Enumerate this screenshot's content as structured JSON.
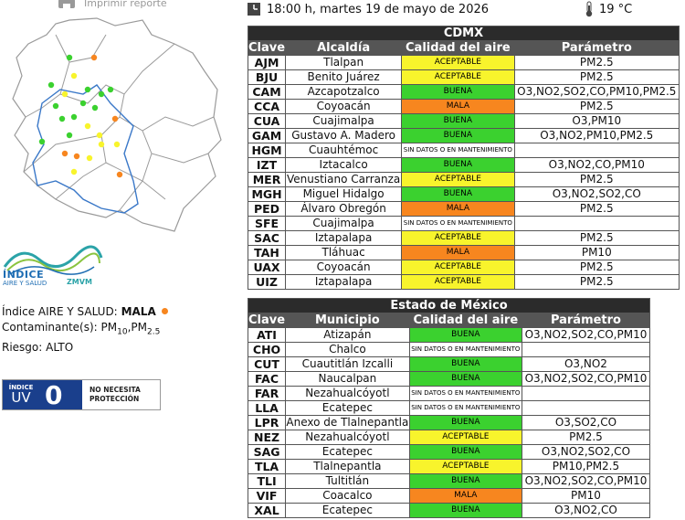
{
  "header": {
    "print_label": "Imprimir reporte",
    "datetime": "18:00 h, martes 19 de mayo de 2026",
    "temperature": "19 °C"
  },
  "cdmx": {
    "title": "CDMX",
    "columns": [
      "Clave",
      "Alcaldía",
      "Calidad del aire",
      "Parámetro"
    ],
    "rows": [
      {
        "key": "AJM",
        "name": "Tlalpan",
        "quality": "ACEPTABLE",
        "param": "PM2.5"
      },
      {
        "key": "BJU",
        "name": "Benito Juárez",
        "quality": "ACEPTABLE",
        "param": "PM2.5"
      },
      {
        "key": "CAM",
        "name": "Azcapotzalco",
        "quality": "BUENA",
        "param": "O3,NO2,SO2,CO,PM10,PM2.5"
      },
      {
        "key": "CCA",
        "name": "Coyoacán",
        "quality": "MALA",
        "param": "PM2.5"
      },
      {
        "key": "CUA",
        "name": "Cuajimalpa",
        "quality": "BUENA",
        "param": "O3,PM10"
      },
      {
        "key": "GAM",
        "name": "Gustavo A. Madero",
        "quality": "BUENA",
        "param": "O3,NO2,PM10,PM2.5"
      },
      {
        "key": "HGM",
        "name": "Cuauhtémoc",
        "quality": "SIN DATOS O EN MANTENIMIENTO",
        "param": ""
      },
      {
        "key": "IZT",
        "name": "Iztacalco",
        "quality": "BUENA",
        "param": "O3,NO2,CO,PM10"
      },
      {
        "key": "MER",
        "name": "Venustiano Carranza",
        "quality": "ACEPTABLE",
        "param": "PM2.5"
      },
      {
        "key": "MGH",
        "name": "Miguel Hidalgo",
        "quality": "BUENA",
        "param": "O3,NO2,SO2,CO"
      },
      {
        "key": "PED",
        "name": "Álvaro Obregón",
        "quality": "MALA",
        "param": "PM2.5"
      },
      {
        "key": "SFE",
        "name": "Cuajimalpa",
        "quality": "SIN DATOS O EN MANTENIMIENTO",
        "param": ""
      },
      {
        "key": "SAC",
        "name": "Iztapalapa",
        "quality": "ACEPTABLE",
        "param": "PM2.5"
      },
      {
        "key": "TAH",
        "name": "Tláhuac",
        "quality": "MALA",
        "param": "PM10"
      },
      {
        "key": "UAX",
        "name": "Coyoacán",
        "quality": "ACEPTABLE",
        "param": "PM2.5"
      },
      {
        "key": "UIZ",
        "name": "Iztapalapa",
        "quality": "ACEPTABLE",
        "param": "PM2.5"
      }
    ]
  },
  "edomex": {
    "title": "Estado de México",
    "columns": [
      "Clave",
      "Municipio",
      "Calidad del aire",
      "Parámetro"
    ],
    "rows": [
      {
        "key": "ATI",
        "name": "Atizapán",
        "quality": "BUENA",
        "param": "O3,NO2,SO2,CO,PM10"
      },
      {
        "key": "CHO",
        "name": "Chalco",
        "quality": "SIN DATOS O EN MANTENIMIENTO",
        "param": ""
      },
      {
        "key": "CUT",
        "name": "Cuautitlán Izcalli",
        "quality": "BUENA",
        "param": "O3,NO2"
      },
      {
        "key": "FAC",
        "name": "Naucalpan",
        "quality": "BUENA",
        "param": "O3,NO2,SO2,CO,PM10"
      },
      {
        "key": "FAR",
        "name": "Nezahualcóyotl",
        "quality": "SIN DATOS O EN MANTENIMIENTO",
        "param": ""
      },
      {
        "key": "LLA",
        "name": "Ecatepec",
        "quality": "SIN DATOS O EN MANTENIMIENTO",
        "param": ""
      },
      {
        "key": "LPR",
        "name": "Anexo de Tlalnepantla",
        "quality": "BUENA",
        "param": "O3,SO2,CO"
      },
      {
        "key": "NEZ",
        "name": "Nezahualcóyotl",
        "quality": "ACEPTABLE",
        "param": "PM2.5"
      },
      {
        "key": "SAG",
        "name": "Ecatepec",
        "quality": "BUENA",
        "param": "O3,NO2,SO2,CO"
      },
      {
        "key": "TLA",
        "name": "Tlalnepantla",
        "quality": "ACEPTABLE",
        "param": "PM10,PM2.5"
      },
      {
        "key": "TLI",
        "name": "Tultitlán",
        "quality": "BUENA",
        "param": "O3,NO2,SO2,CO,PM10"
      },
      {
        "key": "VIF",
        "name": "Coacalco",
        "quality": "MALA",
        "param": "PM10"
      },
      {
        "key": "XAL",
        "name": "Ecatepec",
        "quality": "BUENA",
        "param": "O3,NO2,CO"
      }
    ]
  },
  "logo": {
    "line1": "ÍNDICE",
    "line2": "AIRE Y SALUD",
    "line3": "ZMVM"
  },
  "summary": {
    "index_label": "Índice AIRE Y SALUD:",
    "index_value": "MALA",
    "pollutant_label": "Contaminante(s):",
    "pollutant_pm10_base": "PM",
    "pollutant_pm10_sub": "10",
    "pollutant_sep": ",",
    "pollutant_pm25_base": "PM",
    "pollutant_pm25_sub": "2.5",
    "risk_label": "Riesgo:",
    "risk_value": "ALTO"
  },
  "uv": {
    "label_top": "ÍNDICE",
    "label_bottom": "UV",
    "value": "0",
    "message_line1": "NO NECESITA",
    "message_line2": "PROTECCIÓN"
  },
  "colors": {
    "BUENA": "#3bd12f",
    "ACEPTABLE": "#f8f42c",
    "MALA": "#f7861f",
    "uv_blue": "#1a3f8c",
    "map_line": "#3a78c8",
    "map_border": "#9a9a9a"
  }
}
